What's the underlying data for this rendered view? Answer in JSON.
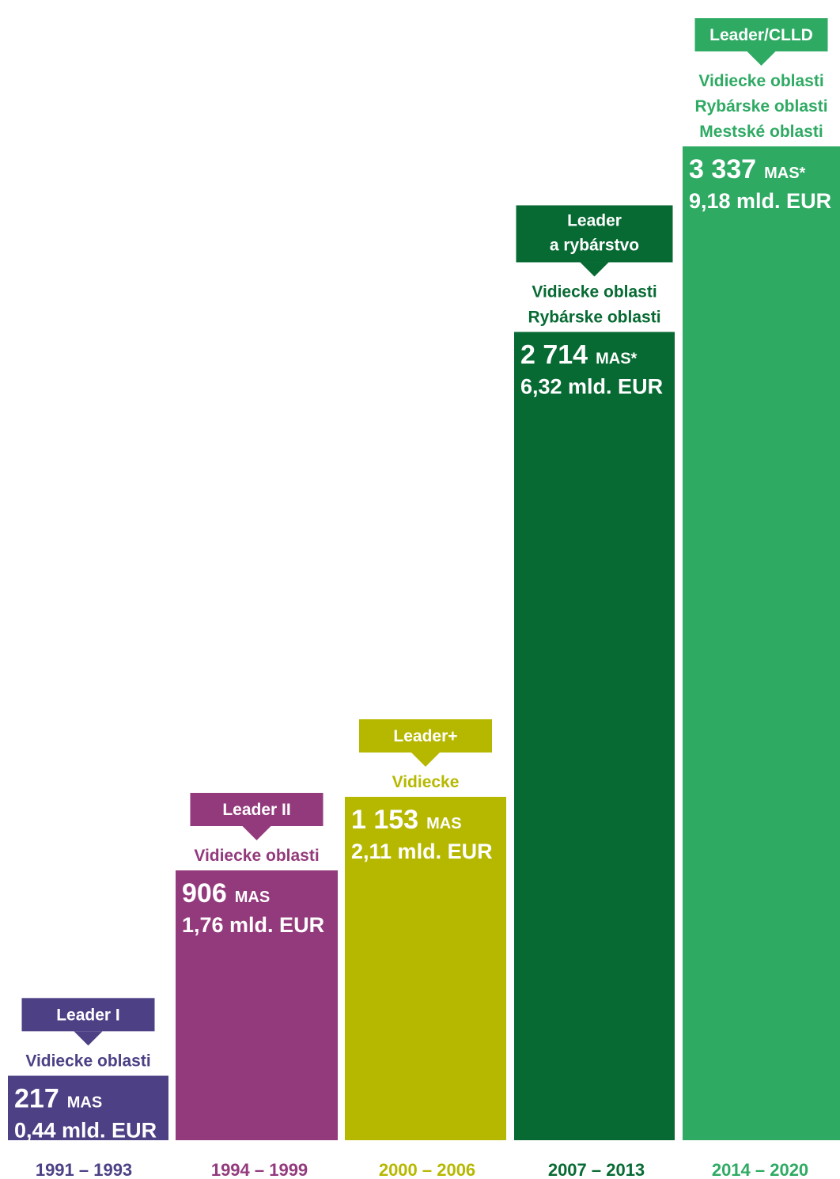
{
  "chart_data": {
    "type": "bar",
    "title": "",
    "xlabel": "",
    "ylabel": "",
    "categories": [
      "1991 – 1993",
      "1994 – 1999",
      "2000 – 2006",
      "2007 – 2013",
      "2014 – 2020"
    ],
    "series": [
      {
        "values": [
          217,
          906,
          1153,
          2714,
          3337
        ]
      }
    ],
    "units": [
      "MAS",
      "MAS",
      "MAS",
      "MAS*",
      "MAS*"
    ],
    "funding": [
      "0,44 mld. EUR",
      "1,76 mld. EUR",
      "2,11 mld. EUR",
      "6,32 mld. EUR",
      "9,18 mld. EUR"
    ],
    "value_labels": [
      "217",
      "906",
      "1 153",
      "2 714",
      "3 337"
    ],
    "programmes": [
      [
        "Leader I"
      ],
      [
        "Leader II"
      ],
      [
        "Leader+"
      ],
      [
        "Leader",
        "a rybárstvo"
      ],
      [
        "Leader/CLLD"
      ]
    ],
    "areas": [
      [
        "Vidiecke oblasti"
      ],
      [
        "Vidiecke oblasti"
      ],
      [
        "Vidiecke"
      ],
      [
        "Vidiecke oblasti",
        "Rybárske oblasti"
      ],
      [
        "Vidiecke oblasti",
        "Rybárske oblasti",
        "Mestské oblasti"
      ]
    ],
    "colors": [
      "#4d4085",
      "#933a7c",
      "#b6b800",
      "#076a33",
      "#2eaa63"
    ],
    "ylim": [
      0,
      3337
    ],
    "grid": false,
    "legend": "none"
  }
}
